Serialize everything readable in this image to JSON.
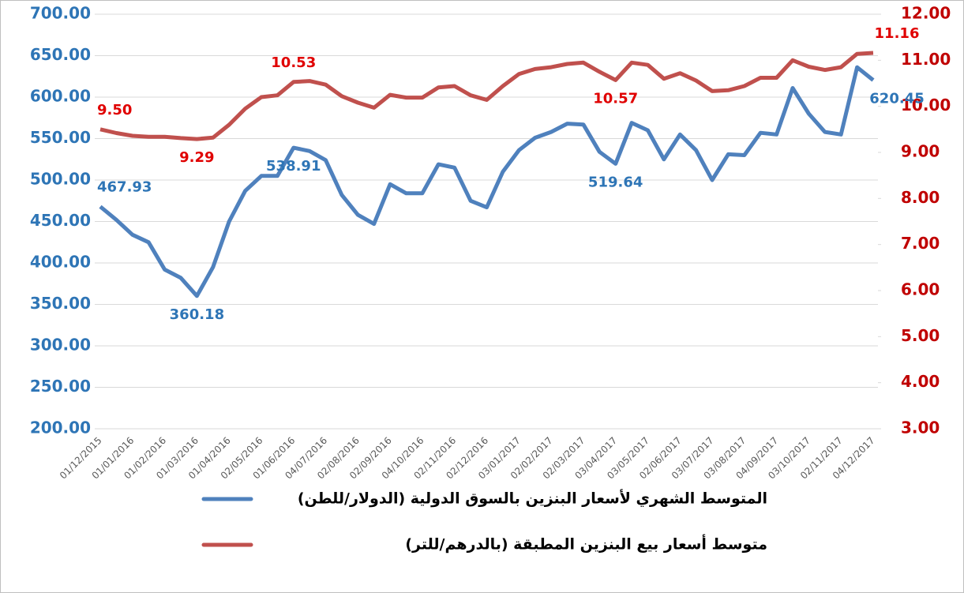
{
  "chart_data": {
    "type": "line",
    "categories": [
      "01/12/2015",
      null,
      "01/01/2016",
      null,
      "01/02/2016",
      null,
      "01/03/2016",
      null,
      "01/04/2016",
      null,
      "02/05/2016",
      null,
      "01/06/2016",
      null,
      "04/07/2016",
      null,
      "02/08/2016",
      null,
      "02/09/2016",
      null,
      "04/10/2016",
      null,
      "02/11/2016",
      null,
      "02/12/2016",
      null,
      "03/01/2017",
      null,
      "02/02/2017",
      null,
      "02/03/2017",
      null,
      "03/04/2017",
      null,
      "03/05/2017",
      null,
      "02/06/2017",
      null,
      "03/07/2017",
      null,
      "03/08/2017",
      null,
      "04/09/2017",
      null,
      "03/10/2017",
      null,
      "02/11/2017",
      null,
      "04/12/2017"
    ],
    "series": [
      {
        "name": "المتوسط الشهري لأسعار البنزين بالسوق الدولية (الدولار/للطن)",
        "color": "#4f81bd",
        "label_color": "#2e75b6",
        "values": [
          467.93,
          452,
          434,
          425,
          392,
          382,
          360.18,
          395,
          450,
          487,
          505,
          505,
          538.91,
          535,
          524,
          482,
          458,
          447,
          495,
          484,
          484,
          519,
          515,
          475,
          467,
          510,
          536,
          551,
          558,
          568,
          567,
          534,
          519.64,
          569,
          560,
          525,
          555,
          536,
          500,
          531,
          530,
          557,
          555,
          611,
          580,
          558,
          555,
          636,
          620.45
        ],
        "value_labels": [
          "467.93",
          null,
          null,
          null,
          null,
          null,
          "360.18",
          null,
          null,
          null,
          null,
          null,
          "538.91",
          null,
          null,
          null,
          null,
          null,
          null,
          null,
          null,
          null,
          null,
          null,
          null,
          null,
          null,
          null,
          null,
          null,
          null,
          null,
          "519.64",
          null,
          null,
          null,
          null,
          null,
          null,
          null,
          null,
          null,
          null,
          null,
          null,
          null,
          null,
          null,
          "620.45"
        ]
      },
      {
        "name": "متوسط أسعار بيع البنزين المطبقة (بالدرهم/للتر)",
        "color": "#c0504d",
        "label_color": "#e00000",
        "axis": "y2",
        "values": [
          9.5,
          9.42,
          9.36,
          9.34,
          9.34,
          9.31,
          9.29,
          9.32,
          9.6,
          9.95,
          10.2,
          10.24,
          10.53,
          10.55,
          10.47,
          10.22,
          10.08,
          9.97,
          10.25,
          10.19,
          10.19,
          10.41,
          10.44,
          10.24,
          10.14,
          10.44,
          10.7,
          10.81,
          10.85,
          10.92,
          10.95,
          10.75,
          10.57,
          10.95,
          10.9,
          10.6,
          10.72,
          10.56,
          10.33,
          10.35,
          10.44,
          10.62,
          10.62,
          11.0,
          10.86,
          10.79,
          10.85,
          11.14,
          11.16
        ],
        "value_labels": [
          "9.50",
          null,
          null,
          null,
          null,
          null,
          "9.29",
          null,
          null,
          null,
          null,
          null,
          "10.53",
          null,
          null,
          null,
          null,
          null,
          null,
          null,
          null,
          null,
          null,
          null,
          null,
          null,
          null,
          null,
          null,
          null,
          null,
          null,
          "10.57",
          null,
          null,
          null,
          null,
          null,
          null,
          null,
          null,
          null,
          null,
          null,
          null,
          null,
          null,
          null,
          "11.16"
        ]
      }
    ],
    "ylim": [
      200,
      700
    ],
    "yticks": [
      {
        "value": 200,
        "label": "200.00"
      },
      {
        "value": 250,
        "label": "250.00"
      },
      {
        "value": 300,
        "label": "300.00"
      },
      {
        "value": 350,
        "label": "350.00"
      },
      {
        "value": 400,
        "label": "400.00"
      },
      {
        "value": 450,
        "label": "450.00"
      },
      {
        "value": 500,
        "label": "500.00"
      },
      {
        "value": 550,
        "label": "550.00"
      },
      {
        "value": 600,
        "label": "600.00"
      },
      {
        "value": 650,
        "label": "650.00"
      },
      {
        "value": 700,
        "label": "700.00"
      }
    ],
    "y2lim": [
      3,
      12
    ],
    "y2ticks": [
      {
        "value": 3,
        "label": "3.00"
      },
      {
        "value": 4,
        "label": "4.00"
      },
      {
        "value": 5,
        "label": "5.00"
      },
      {
        "value": 6,
        "label": "6.00"
      },
      {
        "value": 7,
        "label": "7.00"
      },
      {
        "value": 8,
        "label": "8.00"
      },
      {
        "value": 9,
        "label": "9.00"
      },
      {
        "value": 10,
        "label": "10.00"
      },
      {
        "value": 11,
        "label": "11.00"
      },
      {
        "value": 12,
        "label": "12.00"
      }
    ],
    "grid": true,
    "legend": "bottom"
  }
}
